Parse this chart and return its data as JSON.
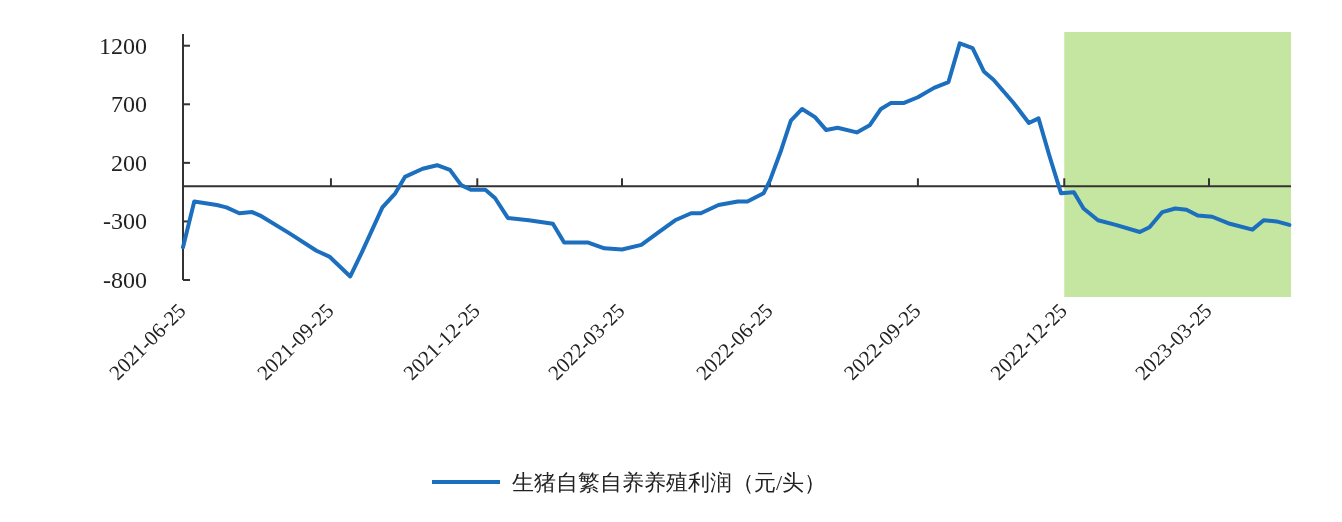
{
  "chart_data": {
    "type": "line",
    "x": [
      "2021-06-25",
      "2021-07-02",
      "2021-07-16",
      "2021-07-22",
      "2021-07-30",
      "2021-08-07",
      "2021-08-12",
      "2021-08-30",
      "2021-09-16",
      "2021-09-24",
      "2021-10-07",
      "2021-10-14",
      "2021-10-27",
      "2021-11-04",
      "2021-11-10",
      "2021-11-21",
      "2021-11-30",
      "2021-12-08",
      "2021-12-15",
      "2021-12-21",
      "2021-12-30",
      "2022-01-05",
      "2022-01-13",
      "2022-01-26",
      "2022-02-10",
      "2022-02-17",
      "2022-03-04",
      "2022-03-14",
      "2022-03-25",
      "2022-04-06",
      "2022-04-16",
      "2022-04-27",
      "2022-05-07",
      "2022-05-13",
      "2022-05-24",
      "2022-06-05",
      "2022-06-11",
      "2022-06-21",
      "2022-06-25",
      "2022-07-02",
      "2022-07-08",
      "2022-07-15",
      "2022-07-23",
      "2022-07-30",
      "2022-08-06",
      "2022-08-18",
      "2022-08-26",
      "2022-09-02",
      "2022-09-08",
      "2022-09-16",
      "2022-09-25",
      "2022-10-05",
      "2022-10-14",
      "2022-10-21",
      "2022-10-29",
      "2022-11-05",
      "2022-11-11",
      "2022-11-23",
      "2022-12-03",
      "2022-12-09",
      "2022-12-16",
      "2022-12-23",
      "2022-12-31",
      "2023-01-06",
      "2023-01-15",
      "2023-01-26",
      "2023-02-10",
      "2023-02-16",
      "2023-02-24",
      "2023-03-04",
      "2023-03-11",
      "2023-03-18",
      "2023-03-27",
      "2023-04-07",
      "2023-04-21",
      "2023-04-28",
      "2023-05-06",
      "2023-05-14"
    ],
    "series": [
      {
        "name": "生猪自繁自养养殖利润（元/头）",
        "color": "#1b6fbe",
        "values": [
          -520,
          -130,
          -160,
          -180,
          -230,
          -220,
          -250,
          -400,
          -550,
          -600,
          -770,
          -570,
          -180,
          -60,
          80,
          150,
          180,
          140,
          10,
          -30,
          -30,
          -100,
          -270,
          -290,
          -320,
          -480,
          -480,
          -530,
          -540,
          -500,
          -400,
          -290,
          -230,
          -230,
          -160,
          -130,
          -130,
          -60,
          50,
          310,
          560,
          660,
          590,
          480,
          500,
          460,
          520,
          660,
          710,
          710,
          760,
          840,
          890,
          1220,
          1180,
          980,
          910,
          720,
          540,
          580,
          250,
          -60,
          -50,
          -190,
          -290,
          -330,
          -390,
          -350,
          -220,
          -190,
          -200,
          -250,
          -260,
          -320,
          -370,
          -290,
          -300,
          -330
        ]
      }
    ],
    "xlim": [
      "2021-06-25",
      "2023-05-15"
    ],
    "xticks": [
      "2021-06-25",
      "2021-09-25",
      "2021-12-25",
      "2022-03-25",
      "2022-06-25",
      "2022-09-25",
      "2022-12-25",
      "2023-03-25"
    ],
    "ylim": [
      -800,
      1300
    ],
    "yticks": [
      1200,
      700,
      200,
      -300,
      -800
    ],
    "bands": [
      {
        "axis": "x",
        "from": "2022-12-25",
        "to": "2023-05-15",
        "color": "#c5e6a0"
      }
    ],
    "legend": "bottom"
  }
}
